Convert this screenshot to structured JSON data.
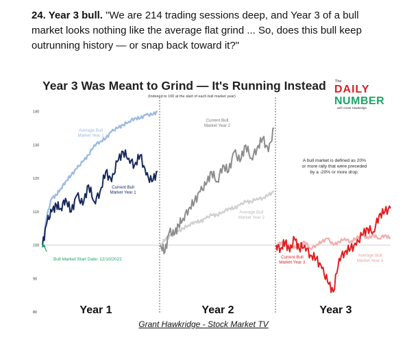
{
  "intro": {
    "number_title": "24. Year 3 bull.",
    "quote": "\"We are 214 trading sessions deep, and Year 3 of a bull market looks nothing like the average flat grind ... So, does this bull keep outrunning history — or snap back toward it?\""
  },
  "caption": "Grant Hawkridge - Stock Market TV",
  "logo": {
    "small": "The",
    "word1": "DAILY",
    "word2": "NUMBER",
    "tagline": "with Grant Hawkridge",
    "colors": {
      "red": "#d62027",
      "green": "#1aa567",
      "dark": "#1f1f1f"
    }
  },
  "chart_data": {
    "type": "line",
    "title": "Year 3 Was Meant to Grind — It's Running Instead",
    "subtitle": "(Indexed to 100 at the start of each bull market year)",
    "ylim": [
      80,
      142
    ],
    "yticks": [
      140,
      130,
      120,
      110,
      100,
      90,
      80
    ],
    "baseline": 100,
    "panels": [
      "Year 1",
      "Year 2",
      "Year 3"
    ],
    "start_label": "Bull Market Start Date: 12/10/2022",
    "definition_note": "A bull market is defined as 20% or more rally that were preceded by a -20% or more drop.",
    "labels": {
      "avg1": "Average Bull Market Year 1",
      "cur1": "Current Bull Market Year 1",
      "cur2": "Current Bull Market Year 2",
      "avg2": "Average Bull Market Year 2",
      "cur3": "Current Bull Market Year 3",
      "avg3": "Average Bull Market Year 3"
    },
    "series": [
      {
        "key": "avg1",
        "panel": 0,
        "color": "#9dbbe0",
        "x": [
          0,
          0.04,
          0.08,
          0.12,
          0.16,
          0.2,
          0.25,
          0.3,
          0.35,
          0.4,
          0.45,
          0.5,
          0.55,
          0.6,
          0.65,
          0.7,
          0.75,
          0.8,
          0.85,
          0.9,
          0.95,
          1.0
        ],
        "values": [
          100,
          109,
          114,
          115,
          117,
          119,
          121,
          123,
          125,
          127,
          130,
          131,
          132,
          134,
          135,
          136,
          137,
          138,
          138,
          139,
          139,
          140
        ]
      },
      {
        "key": "cur1",
        "panel": 0,
        "color": "#16275c",
        "x": [
          0,
          0.04,
          0.08,
          0.12,
          0.16,
          0.2,
          0.25,
          0.3,
          0.35,
          0.4,
          0.45,
          0.5,
          0.55,
          0.6,
          0.65,
          0.7,
          0.75,
          0.8,
          0.85,
          0.9,
          0.95,
          1.0
        ],
        "values": [
          100,
          107,
          110,
          112,
          111,
          114,
          110,
          115,
          112,
          118,
          113,
          116,
          122,
          119,
          125,
          128,
          126,
          124,
          127,
          121,
          119,
          122
        ]
      },
      {
        "key": "cur2",
        "panel": 1,
        "color": "#8c8c8c",
        "x": [
          0,
          0.04,
          0.08,
          0.12,
          0.16,
          0.2,
          0.25,
          0.3,
          0.35,
          0.4,
          0.45,
          0.5,
          0.55,
          0.6,
          0.65,
          0.7,
          0.75,
          0.8,
          0.85,
          0.9,
          0.95,
          1.0
        ],
        "values": [
          100,
          98,
          104,
          103,
          106,
          108,
          111,
          113,
          116,
          118,
          122,
          119,
          124,
          122,
          128,
          125,
          130,
          126,
          129,
          132,
          128,
          135
        ]
      },
      {
        "key": "avg2",
        "panel": 1,
        "color": "#d0d0d0",
        "x": [
          0,
          0.05,
          0.1,
          0.15,
          0.2,
          0.25,
          0.3,
          0.35,
          0.4,
          0.45,
          0.5,
          0.55,
          0.6,
          0.65,
          0.7,
          0.75,
          0.8,
          0.85,
          0.9,
          0.95,
          1.0
        ],
        "values": [
          100,
          102,
          103,
          104,
          105,
          106,
          107,
          107,
          108,
          109,
          109,
          110,
          111,
          111,
          112,
          113,
          113,
          114,
          114,
          115,
          116
        ]
      },
      {
        "key": "cur3",
        "panel": 2,
        "color": "#e01f1f",
        "x": [
          0,
          0.04,
          0.08,
          0.12,
          0.16,
          0.2,
          0.25,
          0.3,
          0.35,
          0.4,
          0.45,
          0.5,
          0.55,
          0.6,
          0.65,
          0.7,
          0.75,
          0.8,
          0.85,
          0.9,
          0.95,
          1.0
        ],
        "values": [
          100,
          99,
          101,
          98,
          102,
          99,
          100,
          97,
          96,
          93,
          89,
          86,
          96,
          98,
          99,
          100,
          103,
          105,
          104,
          109,
          110,
          111
        ]
      },
      {
        "key": "avg3",
        "panel": 2,
        "color": "#f0b0b0",
        "x": [
          0,
          0.05,
          0.1,
          0.15,
          0.2,
          0.25,
          0.3,
          0.35,
          0.4,
          0.45,
          0.5,
          0.55,
          0.6,
          0.65,
          0.7,
          0.75,
          0.8,
          0.85,
          0.9,
          0.95,
          1.0
        ],
        "values": [
          100,
          101,
          100,
          99,
          100,
          101,
          99,
          100,
          101,
          102,
          100,
          101,
          102,
          101,
          102,
          103,
          102,
          103,
          102,
          103,
          102
        ]
      }
    ]
  }
}
